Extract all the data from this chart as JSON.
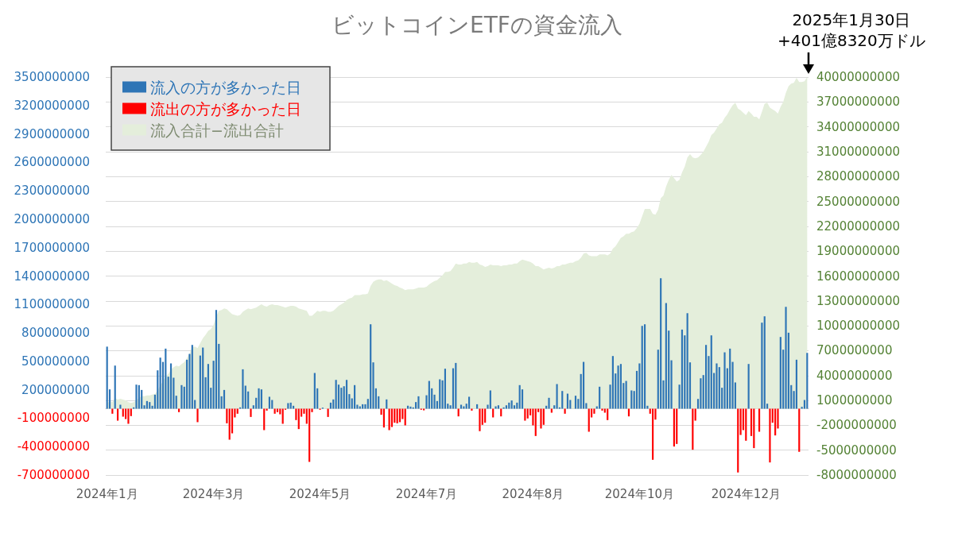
{
  "chart_data": {
    "type": "bar",
    "title": "ビットコインETFの資金流入",
    "categories": [
      "2024年1月",
      null,
      null,
      null,
      null,
      null,
      null,
      null,
      null,
      null,
      null,
      null,
      null,
      null,
      null,
      null,
      null,
      null,
      null,
      null,
      null,
      null,
      null,
      null,
      null,
      null,
      null,
      null,
      null,
      null,
      null,
      null,
      null,
      null,
      null,
      null,
      null,
      null,
      null,
      null,
      "2024年3月",
      null,
      null,
      null,
      null,
      null,
      null,
      null,
      null,
      null,
      null,
      null,
      null,
      null,
      null,
      null,
      null,
      null,
      null,
      null,
      null,
      null,
      null,
      null,
      null,
      null,
      null,
      null,
      null,
      null,
      null,
      null,
      null,
      null,
      null,
      null,
      null,
      null,
      null,
      null,
      "2024年5月",
      null,
      null,
      null,
      null,
      null,
      null,
      null,
      null,
      null,
      null,
      null,
      null,
      null,
      null,
      null,
      null,
      null,
      null,
      null,
      null,
      null,
      null,
      null,
      null,
      null,
      null,
      null,
      null,
      null,
      null,
      null,
      null,
      null,
      null,
      null,
      null,
      null,
      null,
      null,
      "2024年7月",
      null,
      null,
      null,
      null,
      null,
      null,
      null,
      null,
      null,
      null,
      null,
      null,
      null,
      null,
      null,
      null,
      null,
      null,
      null,
      null,
      null,
      null,
      null,
      null,
      null,
      null,
      null,
      null,
      null,
      null,
      null,
      null,
      null,
      null,
      null,
      null,
      null,
      null,
      null,
      "2024年8月",
      null,
      null,
      null,
      null,
      null,
      null,
      null,
      null,
      null,
      null,
      null,
      null,
      null,
      null,
      null,
      null,
      null,
      null,
      null,
      null,
      null,
      null,
      null,
      null,
      null,
      null,
      null,
      null,
      null,
      null,
      null,
      null,
      null,
      null,
      null,
      null,
      null,
      null,
      null,
      "2024年10月",
      null,
      null,
      null,
      null,
      null,
      null,
      null,
      null,
      null,
      null,
      null,
      null,
      null,
      null,
      null,
      null,
      null,
      null,
      null,
      null,
      null,
      null,
      null,
      null,
      null,
      null,
      null,
      null,
      null,
      null,
      null,
      null,
      null,
      null,
      null,
      null,
      null,
      null,
      null,
      "2024年12月",
      null,
      null,
      null,
      null,
      null,
      null,
      null,
      null,
      null,
      null,
      null,
      null,
      null,
      null,
      null,
      null,
      null,
      null,
      null,
      null,
      null,
      null,
      null
    ],
    "series": [
      {
        "name": "流入の方が多かった日",
        "color": "#2e75b6",
        "values": [
          655000000.0,
          204000000.0,
          null,
          455000000.0,
          null,
          42000000.0,
          null,
          null,
          null,
          null,
          14000000.0,
          254000000.0,
          249000000.0,
          198000000.0,
          36000000.0,
          81000000.0,
          70000000.0,
          31000000.0,
          148000000.0,
          405000000.0,
          539000000.0,
          494000000.0,
          634000000.0,
          338000000.0,
          478000000.0,
          327000000.0,
          137000000.0,
          null,
          249000000.0,
          232000000.0,
          517000000.0,
          578000000.0,
          673000000.0,
          92000000.0,
          null,
          561000000.0,
          645000000.0,
          332000000.0,
          472000000.0,
          221000000.0,
          506000000.0,
          1042000000.0,
          684000000.0,
          131000000.0,
          198000000.0,
          null,
          null,
          null,
          null,
          null,
          14000000.0,
          416000000.0,
          243000000.0,
          182000000.0,
          null,
          36000000.0,
          115000000.0,
          215000000.0,
          204000000.0,
          null,
          null,
          126000000.0,
          92000000.0,
          null,
          null,
          null,
          null,
          null,
          59000000.0,
          64000000.0,
          31000000.0,
          null,
          null,
          null,
          null,
          null,
          null,
          null,
          377000000.0,
          215000000.0,
          null,
          11000000.0,
          null,
          null,
          64000000.0,
          98000000.0,
          304000000.0,
          254000000.0,
          221000000.0,
          237000000.0,
          304000000.0,
          154000000.0,
          109000000.0,
          249000000.0,
          42000000.0,
          25000000.0,
          47000000.0,
          47000000.0,
          103000000.0,
          891000000.0,
          489000000.0,
          215000000.0,
          131000000.0,
          null,
          null,
          98000000.0,
          null,
          null,
          null,
          null,
          null,
          null,
          null,
          31000000.0,
          22000000.0,
          14000000.0,
          70000000.0,
          131000000.0,
          null,
          null,
          142000000.0,
          293000000.0,
          215000000.0,
          148000000.0,
          81000000.0,
          310000000.0,
          299000000.0,
          422000000.0,
          53000000.0,
          36000000.0,
          427000000.0,
          483000000.0,
          null,
          42000000.0,
          25000000.0,
          53000000.0,
          126000000.0,
          null,
          null,
          47000000.0,
          null,
          null,
          null,
          42000000.0,
          193000000.0,
          null,
          25000000.0,
          36000000.0,
          null,
          14000000.0,
          36000000.0,
          64000000.0,
          87000000.0,
          36000000.0,
          64000000.0,
          249000000.0,
          204000000.0,
          null,
          null,
          null,
          null,
          null,
          null,
          null,
          null,
          31000000.0,
          115000000.0,
          null,
          36000000.0,
          260000000.0,
          14000000.0,
          187000000.0,
          null,
          159000000.0,
          92000000.0,
          null,
          137000000.0,
          103000000.0,
          366000000.0,
          494000000.0,
          59000000.0,
          null,
          null,
          null,
          25000000.0,
          232000000.0,
          null,
          null,
          null,
          254000000.0,
          556000000.0,
          372000000.0,
          455000000.0,
          472000000.0,
          271000000.0,
          293000000.0,
          null,
          193000000.0,
          187000000.0,
          399000000.0,
          478000000.0,
          874000000.0,
          891000000.0,
          31000000.0,
          null,
          null,
          null,
          623000000.0,
          1377000000.0,
          299000000.0,
          1115000000.0,
          824000000.0,
          511000000.0,
          null,
          null,
          254000000.0,
          835000000.0,
          774000000.0,
          1008000000.0,
          489000000.0,
          null,
          null,
          103000000.0,
          321000000.0,
          355000000.0,
          673000000.0,
          556000000.0,
          774000000.0,
          377000000.0,
          478000000.0,
          439000000.0,
          221000000.0,
          595000000.0,
          427000000.0,
          634000000.0,
          494000000.0,
          277000000.0,
          null,
          null,
          null,
          null,
          472000000.0,
          null,
          null,
          null,
          null,
          908000000.0,
          975000000.0,
          53000000.0,
          null,
          null,
          null,
          null,
          757000000.0,
          623000000.0,
          1075000000.0,
          802000000.0,
          249000000.0,
          187000000.0,
          517000000.0,
          null,
          20000000.0,
          92000000.0,
          589000000.0
        ]
      },
      {
        "name": "流出の方が多かった日",
        "color": "#ff0000",
        "values": [
          null,
          null,
          -53000000.0,
          null,
          -126000000.0,
          null,
          -84000000.0,
          -109000000.0,
          -159000000.0,
          -78000000.0,
          null,
          null,
          null,
          null,
          null,
          null,
          null,
          null,
          null,
          null,
          null,
          null,
          null,
          null,
          null,
          null,
          null,
          -36000000.0,
          null,
          null,
          null,
          null,
          null,
          null,
          -142000000.0,
          null,
          null,
          null,
          null,
          null,
          null,
          null,
          null,
          null,
          null,
          -154000000.0,
          -327000000.0,
          -260000000.0,
          -92000000.0,
          -53000000.0,
          null,
          null,
          null,
          null,
          -87000000.0,
          null,
          null,
          null,
          null,
          -226000000.0,
          -20000000.0,
          null,
          null,
          -53000000.0,
          -36000000.0,
          -59000000.0,
          -159000000.0,
          -11000000.0,
          null,
          null,
          null,
          -120000000.0,
          -215000000.0,
          -84000000.0,
          -53000000.0,
          -159000000.0,
          -561000000.0,
          -36000000.0,
          null,
          null,
          -11000000.0,
          null,
          null,
          -87000000.0,
          null,
          null,
          null,
          null,
          null,
          null,
          null,
          null,
          null,
          null,
          null,
          null,
          null,
          null,
          null,
          null,
          null,
          null,
          null,
          -64000000.0,
          -198000000.0,
          null,
          -226000000.0,
          -193000000.0,
          -148000000.0,
          -154000000.0,
          -142000000.0,
          -109000000.0,
          -176000000.0,
          null,
          null,
          null,
          null,
          null,
          -11000000.0,
          -17000000.0,
          null,
          null,
          null,
          null,
          null,
          null,
          null,
          null,
          null,
          null,
          null,
          null,
          -81000000.0,
          null,
          null,
          null,
          null,
          -20000000.0,
          null,
          null,
          -237000000.0,
          -170000000.0,
          -148000000.0,
          null,
          null,
          -92000000.0,
          null,
          null,
          -81000000.0,
          null,
          null,
          null,
          null,
          null,
          null,
          null,
          null,
          -126000000.0,
          -103000000.0,
          -70000000.0,
          -176000000.0,
          -288000000.0,
          -36000000.0,
          -209000000.0,
          -170000000.0,
          null,
          null,
          -42000000.0,
          null,
          null,
          null,
          null,
          -53000000.0,
          null,
          null,
          null,
          null,
          null,
          null,
          null,
          null,
          -243000000.0,
          -92000000.0,
          -53000000.0,
          null,
          null,
          -20000000.0,
          -42000000.0,
          -120000000.0,
          null,
          null,
          null,
          null,
          null,
          null,
          null,
          -81000000.0,
          null,
          null,
          null,
          null,
          null,
          null,
          null,
          -53000000.0,
          -539000000.0,
          -115000000.0,
          null,
          null,
          null,
          null,
          null,
          null,
          -399000000.0,
          -372000000.0,
          null,
          null,
          null,
          null,
          null,
          -433000000.0,
          -126000000.0,
          null,
          null,
          null,
          null,
          null,
          null,
          null,
          null,
          null,
          null,
          null,
          null,
          null,
          null,
          null,
          -673000000.0,
          -277000000.0,
          -226000000.0,
          -338000000.0,
          null,
          -288000000.0,
          -416000000.0,
          null,
          -243000000.0,
          null,
          null,
          null,
          -567000000.0,
          -148000000.0,
          -282000000.0,
          -209000000.0,
          null,
          null,
          null,
          null,
          null,
          null,
          null,
          -455000000.0,
          null,
          null,
          null
        ]
      },
      {
        "name": "流入合計−流出合計",
        "type": "area",
        "axis": "y2",
        "color": "#e4eedb",
        "values": [
          700000000.0,
          900000000.0,
          800000000.0,
          1300000000.0,
          1100000000.0,
          1200000000.0,
          1100000000.0,
          1000000000.0,
          800000000.0,
          700000000.0,
          800000000.0,
          1000000000.0,
          1300000000.0,
          1500000000.0,
          1500000000.0,
          1600000000.0,
          1600000000.0,
          1700000000.0,
          1800000000.0,
          2200000000.0,
          2800000000.0,
          3300000000.0,
          3900000000.0,
          4200000000.0,
          4700000000.0,
          5000000000.0,
          5200000000.0,
          5100000000.0,
          5400000000.0,
          5600000000.0,
          6100000000.0,
          6700000000.0,
          7400000000.0,
          7500000000.0,
          7300000000.0,
          7900000000.0,
          8500000000.0,
          8900000000.0,
          9400000000.0,
          9600000000.0,
          10100000000.0,
          11100000000.0,
          11800000000.0,
          11900000000.0,
          12100000000.0,
          12000000000.0,
          11700000000.0,
          11400000000.0,
          11300000000.0,
          11200000000.0,
          11300000000.0,
          11700000000.0,
          11900000000.0,
          12100000000.0,
          12000000000.0,
          12100000000.0,
          12200000000.0,
          12400000000.0,
          12600000000.0,
          12400000000.0,
          12300000000.0,
          12500000000.0,
          12600000000.0,
          12500000000.0,
          12500000000.0,
          12400000000.0,
          12300000000.0,
          12200000000.0,
          12300000000.0,
          12400000000.0,
          12400000000.0,
          12300000000.0,
          12100000000.0,
          12000000000.0,
          11900000000.0,
          11800000000.0,
          11200000000.0,
          11200000000.0,
          11500000000.0,
          11800000000.0,
          11700000000.0,
          11800000000.0,
          11800000000.0,
          11700000000.0,
          11700000000.0,
          11800000000.0,
          12100000000.0,
          12400000000.0,
          12600000000.0,
          12800000000.0,
          13100000000.0,
          13300000000.0,
          13400000000.0,
          13700000000.0,
          13700000000.0,
          13700000000.0,
          13800000000.0,
          13800000000.0,
          13900000000.0,
          14800000000.0,
          15300000000.0,
          15500000000.0,
          15600000000.0,
          15600000000.0,
          15400000000.0,
          15500000000.0,
          15300000000.0,
          15100000000.0,
          14900000000.0,
          14800000000.0,
          14600000000.0,
          14500000000.0,
          14300000000.0,
          14400000000.0,
          14400000000.0,
          14400000000.0,
          14500000000.0,
          14600000000.0,
          14600000000.0,
          14600000000.0,
          14700000000.0,
          15000000000.0,
          15200000000.0,
          15400000000.0,
          15500000000.0,
          15800000000.0,
          16100000000.0,
          16500000000.0,
          16500000000.0,
          16600000000.0,
          17000000000.0,
          17500000000.0,
          17400000000.0,
          17400000000.0,
          17500000000.0,
          17500000000.0,
          17700000000.0,
          17600000000.0,
          17600000000.0,
          17700000000.0,
          17400000000.0,
          17300000000.0,
          17100000000.0,
          17200000000.0,
          17400000000.0,
          17300000000.0,
          17300000000.0,
          17300000000.0,
          17200000000.0,
          17300000000.0,
          17300000000.0,
          17400000000.0,
          17400000000.0,
          17500000000.0,
          17500000000.0,
          17800000000.0,
          18000000000.0,
          17900000000.0,
          17800000000.0,
          17700000000.0,
          17500000000.0,
          17200000000.0,
          17200000000.0,
          17000000000.0,
          16800000000.0,
          16900000000.0,
          17000000000.0,
          16900000000.0,
          17000000000.0,
          17200000000.0,
          17200000000.0,
          17400000000.0,
          17400000000.0,
          17500000000.0,
          17600000000.0,
          17600000000.0,
          17800000000.0,
          17900000000.0,
          18200000000.0,
          18700000000.0,
          18800000000.0,
          18500000000.0,
          18400000000.0,
          18400000000.0,
          18400000000.0,
          18600000000.0,
          18600000000.0,
          18600000000.0,
          18500000000.0,
          18700000000.0,
          19300000000.0,
          19600000000.0,
          20100000000.0,
          20600000000.0,
          20800000000.0,
          21100000000.0,
          21100000000.0,
          21300000000.0,
          21400000000.0,
          21800000000.0,
          22300000000.0,
          23200000000.0,
          24100000000.0,
          24100000000.0,
          24100000000.0,
          23500000000.0,
          23400000000.0,
          24000000000.0,
          25400000000.0,
          25700000000.0,
          26800000000.0,
          27600000000.0,
          28200000000.0,
          27800000000.0,
          27400000000.0,
          27600000000.0,
          28500000000.0,
          29200000000.0,
          30300000000.0,
          30700000000.0,
          30300000000.0,
          30200000000.0,
          30300000000.0,
          30600000000.0,
          31000000000.0,
          31600000000.0,
          32200000000.0,
          33000000000.0,
          33300000000.0,
          33800000000.0,
          34300000000.0,
          34500000000.0,
          35100000000.0,
          35500000000.0,
          36100000000.0,
          36600000000.0,
          36900000000.0,
          36200000000.0,
          36000000000.0,
          35700000000.0,
          35400000000.0,
          35900000000.0,
          35600000000.0,
          35200000000.0,
          35200000000.0,
          34900000000.0,
          35800000000.0,
          36800000000.0,
          36900000000.0,
          36300000000.0,
          36100000000.0,
          35900000000.0,
          35600000000.0,
          36400000000.0,
          37000000000.0,
          38100000000.0,
          38900000000.0,
          39200000000.0,
          39300000000.0,
          39900000000.0,
          39400000000.0,
          39400000000.0,
          39500000000.0,
          40000000000.0
        ]
      }
    ],
    "stacked": true,
    "ylim": [
      -700000000,
      3500000000
    ],
    "yticks": [
      -700000000,
      -400000000,
      -100000000,
      200000000,
      500000000,
      800000000,
      1100000000,
      1400000000,
      1700000000,
      2000000000,
      2300000000,
      2600000000,
      2900000000,
      3200000000,
      3500000000
    ],
    "y2lim": [
      -8000000000,
      40000000000
    ],
    "y2ticks": [
      -8000000000,
      -5000000000,
      -2000000000,
      1000000000,
      4000000000,
      7000000000,
      10000000000,
      13000000000,
      16000000000,
      19000000000,
      22000000000,
      25000000000,
      28000000000,
      31000000000,
      34000000000,
      37000000000,
      40000000000
    ],
    "grid": true,
    "legend": "top left",
    "annotations": [
      "2025年1月30日\n+401億8320万ドル"
    ]
  }
}
